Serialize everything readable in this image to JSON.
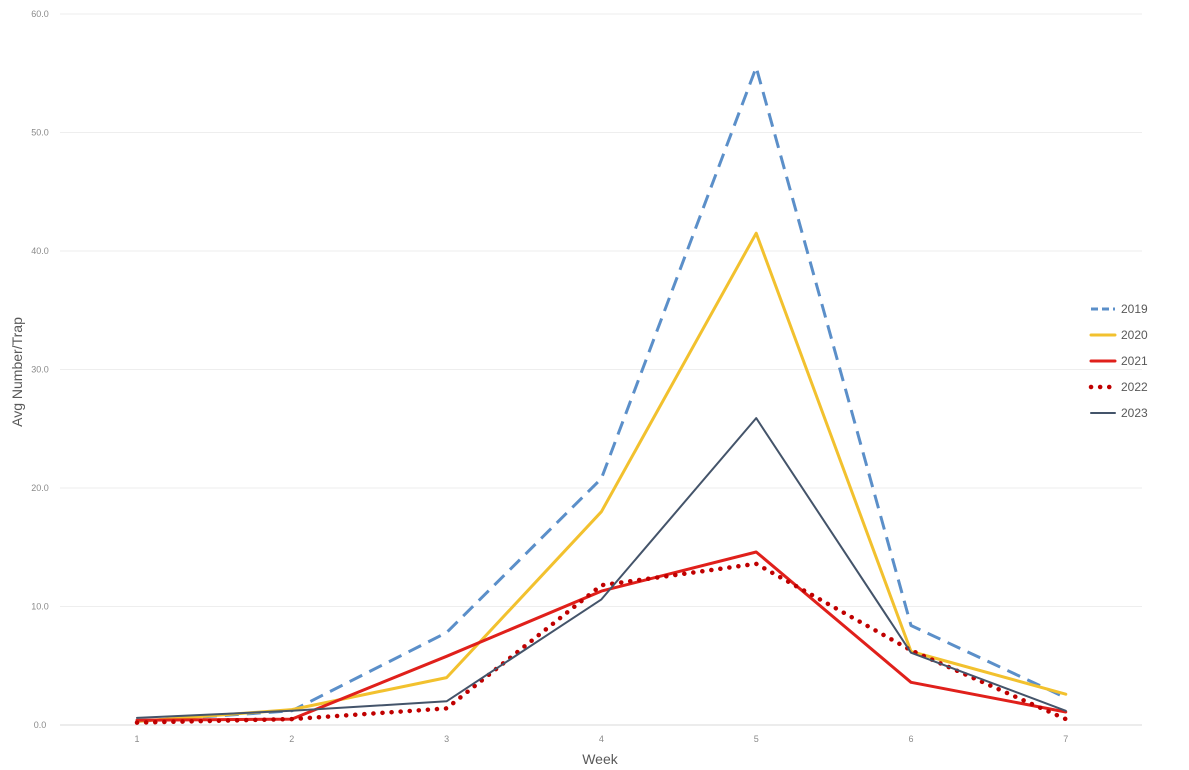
{
  "chart_data": {
    "type": "line",
    "xlabel": "Week",
    "ylabel": "Avg Number/Trap",
    "x": [
      1,
      2,
      3,
      4,
      5,
      6,
      7
    ],
    "x_tick_labels": [
      "1",
      "2",
      "3",
      "4",
      "5",
      "6",
      "7"
    ],
    "ylim": [
      0,
      60
    ],
    "y_ticks": [
      0,
      10,
      20,
      30,
      40,
      50,
      60
    ],
    "y_tick_labels": [
      "0.0",
      "10.0",
      "20.0",
      "30.0",
      "40.0",
      "50.0",
      "60.0"
    ],
    "grid": true,
    "legend_position": "right",
    "series": [
      {
        "name": "2019",
        "color": "#5b8fc9",
        "style": "dashed",
        "values": [
          0.3,
          1.2,
          7.8,
          20.8,
          55.5,
          8.4,
          2.3
        ]
      },
      {
        "name": "2020",
        "color": "#f2c12e",
        "style": "solid",
        "values": [
          0.3,
          1.3,
          4.0,
          18.0,
          41.5,
          6.2,
          2.6
        ]
      },
      {
        "name": "2021",
        "color": "#e0201b",
        "style": "solid",
        "values": [
          0.4,
          0.5,
          5.8,
          11.3,
          14.6,
          3.6,
          1.1
        ]
      },
      {
        "name": "2022",
        "color": "#c00000",
        "style": "dotted",
        "values": [
          0.2,
          0.5,
          1.4,
          11.8,
          13.6,
          6.3,
          0.5
        ]
      },
      {
        "name": "2023",
        "color": "#44546a",
        "style": "solid",
        "values": [
          0.6,
          1.2,
          2.0,
          10.6,
          25.9,
          6.1,
          1.2
        ]
      }
    ]
  }
}
